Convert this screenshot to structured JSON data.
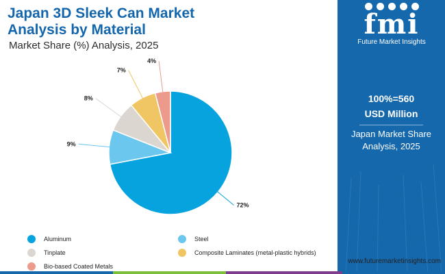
{
  "title": "Japan 3D Sleek Can Market Analysis by Material",
  "subtitle": "Market Share (%) Analysis, 2025",
  "chart_data": {
    "type": "pie",
    "title": "Japan 3D Sleek Can Market Analysis by Material",
    "subtitle": "Market Share (%) Analysis, 2025",
    "unit": "%",
    "slices": [
      {
        "label": "Aluminum",
        "value": 72,
        "display": "72%",
        "color": "#06a3df"
      },
      {
        "label": "Steel",
        "value": 9,
        "display": "9%",
        "color": "#6cc7ef"
      },
      {
        "label": "Tinplate",
        "value": 8,
        "display": "8%",
        "color": "#dcd6d0"
      },
      {
        "label": "Composite Laminates (metal-plastic hybrids)",
        "value": 7,
        "display": "7%",
        "color": "#f0c664"
      },
      {
        "label": "Bio-based Coated Metals",
        "value": 4,
        "display": "4%",
        "color": "#ec9a8c"
      }
    ],
    "legend_position": "bottom"
  },
  "legend": [
    {
      "label": "Aluminum",
      "color": "#06a3df"
    },
    {
      "label": "Steel",
      "color": "#6cc7ef"
    },
    {
      "label": "Tinplate",
      "color": "#dcd6d0"
    },
    {
      "label": "Composite Laminates (metal-plastic hybrids)",
      "color": "#f0c664"
    },
    {
      "label": "Bio-based Coated Metals",
      "color": "#ec9a8c"
    }
  ],
  "panel": {
    "logo_text": "fmi",
    "logo_sub": "Future Market Insights",
    "total_value": "100%=560",
    "total_unit": "USD Million",
    "description": "Japan Market Share Analysis, 2025"
  },
  "website": "www.futuremarketinsights.com",
  "colors": {
    "accent": "#1466ac",
    "panel": "#1668ac",
    "bar_blue": "#1668ac",
    "bar_green": "#7bbf3b",
    "bar_purple": "#7d3c8c"
  }
}
